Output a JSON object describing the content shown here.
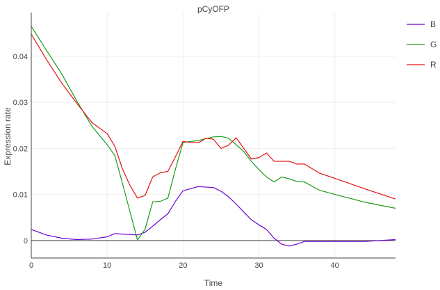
{
  "chart_data": {
    "type": "line",
    "title": "pCyOFP",
    "xlabel": "Time",
    "ylabel": "Expression rate",
    "xlim": [
      0,
      48
    ],
    "ylim": [
      -0.0038,
      0.0495
    ],
    "grid": true,
    "legend_position": "right",
    "x_ticks": [
      {
        "value": 0,
        "label": "0"
      },
      {
        "value": 10,
        "label": "10"
      },
      {
        "value": 20,
        "label": "20"
      },
      {
        "value": 30,
        "label": "30"
      },
      {
        "value": 40,
        "label": "40"
      }
    ],
    "y_ticks": [
      {
        "value": 0,
        "label": "0"
      },
      {
        "value": 0.01,
        "label": "0.01"
      },
      {
        "value": 0.02,
        "label": "0.02"
      },
      {
        "value": 0.03,
        "label": "0.03"
      },
      {
        "value": 0.04,
        "label": "0.04"
      }
    ],
    "series": [
      {
        "name": "B",
        "color": "#6a00d0",
        "points": [
          [
            0,
            0.0024
          ],
          [
            2,
            0.0012
          ],
          [
            4,
            0.0005
          ],
          [
            6,
            0.0002
          ],
          [
            8,
            0.0003
          ],
          [
            10,
            0.0008
          ],
          [
            11,
            0.0015
          ],
          [
            12,
            0.0014
          ],
          [
            13,
            0.0013
          ],
          [
            14,
            0.0012
          ],
          [
            15,
            0.0018
          ],
          [
            16,
            0.0031
          ],
          [
            17,
            0.0045
          ],
          [
            18,
            0.0058
          ],
          [
            19,
            0.0085
          ],
          [
            20,
            0.0108
          ],
          [
            22,
            0.0117
          ],
          [
            24,
            0.0115
          ],
          [
            25,
            0.0107
          ],
          [
            26,
            0.0095
          ],
          [
            27,
            0.0079
          ],
          [
            28,
            0.0062
          ],
          [
            29,
            0.0045
          ],
          [
            30,
            0.0034
          ],
          [
            31,
            0.0024
          ],
          [
            32,
            0.0005
          ],
          [
            33,
            -0.0008
          ],
          [
            34,
            -0.0012
          ],
          [
            35,
            -0.0008
          ],
          [
            36,
            -0.0002
          ],
          [
            40,
            -0.0002
          ],
          [
            44,
            -0.0002
          ],
          [
            48,
            0.0002
          ]
        ]
      },
      {
        "name": "G",
        "color": "#1a9a1a",
        "points": [
          [
            0,
            0.0465
          ],
          [
            2,
            0.0413
          ],
          [
            4,
            0.0362
          ],
          [
            6,
            0.0303
          ],
          [
            8,
            0.0248
          ],
          [
            10,
            0.0208
          ],
          [
            11,
            0.0185
          ],
          [
            12,
            0.0125
          ],
          [
            13,
            0.0063
          ],
          [
            14,
            0.0001
          ],
          [
            15,
            0.0025
          ],
          [
            16,
            0.0084
          ],
          [
            17,
            0.0085
          ],
          [
            18,
            0.0092
          ],
          [
            19,
            0.0155
          ],
          [
            20,
            0.0213
          ],
          [
            22,
            0.0217
          ],
          [
            24,
            0.0225
          ],
          [
            25,
            0.0226
          ],
          [
            26,
            0.0222
          ],
          [
            27,
            0.0208
          ],
          [
            28,
            0.0193
          ],
          [
            29,
            0.0172
          ],
          [
            30,
            0.0154
          ],
          [
            31,
            0.0138
          ],
          [
            32,
            0.0127
          ],
          [
            33,
            0.0138
          ],
          [
            34,
            0.0134
          ],
          [
            35,
            0.0128
          ],
          [
            36,
            0.0127
          ],
          [
            38,
            0.0109
          ],
          [
            40,
            0.01
          ],
          [
            44,
            0.0083
          ],
          [
            48,
            0.007
          ]
        ]
      },
      {
        "name": "R",
        "color": "#e31010",
        "points": [
          [
            0,
            0.0448
          ],
          [
            2,
            0.0393
          ],
          [
            4,
            0.0342
          ],
          [
            6,
            0.0298
          ],
          [
            8,
            0.0256
          ],
          [
            10,
            0.0232
          ],
          [
            11,
            0.0205
          ],
          [
            12,
            0.0156
          ],
          [
            13,
            0.012
          ],
          [
            14,
            0.0092
          ],
          [
            15,
            0.0098
          ],
          [
            16,
            0.0138
          ],
          [
            17,
            0.0147
          ],
          [
            18,
            0.015
          ],
          [
            19,
            0.0182
          ],
          [
            20,
            0.0215
          ],
          [
            21,
            0.0213
          ],
          [
            22,
            0.0212
          ],
          [
            23,
            0.0222
          ],
          [
            24,
            0.022
          ],
          [
            25,
            0.02
          ],
          [
            26,
            0.0207
          ],
          [
            27,
            0.0223
          ],
          [
            28,
            0.02
          ],
          [
            29,
            0.0177
          ],
          [
            30,
            0.018
          ],
          [
            31,
            0.019
          ],
          [
            32,
            0.0172
          ],
          [
            34,
            0.0172
          ],
          [
            35,
            0.0166
          ],
          [
            36,
            0.0166
          ],
          [
            38,
            0.0146
          ],
          [
            40,
            0.0135
          ],
          [
            44,
            0.0112
          ],
          [
            48,
            0.009
          ]
        ]
      }
    ]
  }
}
